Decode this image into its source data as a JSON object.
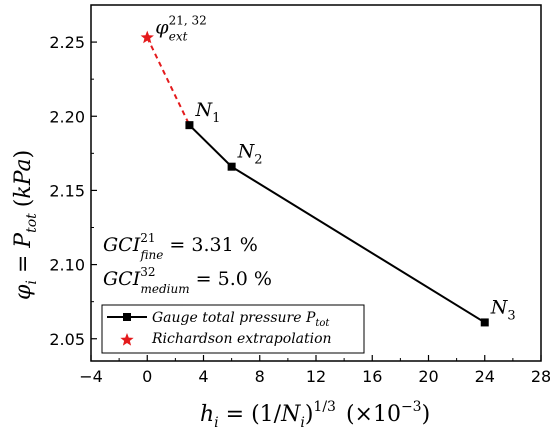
{
  "chart_data": {
    "type": "line",
    "xlim": [
      -4,
      28
    ],
    "ylim": [
      2.035,
      2.275
    ],
    "xticks": [
      -4,
      0,
      4,
      8,
      12,
      16,
      20,
      24,
      28
    ],
    "yticks": [
      2.05,
      2.1,
      2.15,
      2.2,
      2.25
    ],
    "xlabel": {
      "lhs": "h",
      "lhs_sub": "i",
      "rhs": "(1/N",
      "rhs_sub": "i",
      "rhs_close": ")",
      "rhs_sup": "1/3",
      "scale": "(×10",
      "scale_sup": "−3",
      "scale_close": ")"
    },
    "ylabel": {
      "a": "φ",
      "a_sub": "i",
      "b": " = P",
      "b_sub": "tot",
      "c": " (kPa)"
    },
    "series": [
      {
        "name": "Gauge total pressure P",
        "name_sub": "tot",
        "color": "#000000",
        "marker": "square",
        "points": [
          {
            "x": 3.0,
            "y": 2.194,
            "label": "N",
            "label_sub": "1"
          },
          {
            "x": 6.0,
            "y": 2.166,
            "label": "N",
            "label_sub": "2"
          },
          {
            "x": 24.0,
            "y": 2.061,
            "label": "N",
            "label_sub": "3"
          }
        ]
      },
      {
        "name": "Richardson extrapolation",
        "color": "#e41a1c",
        "marker": "star",
        "points": [
          {
            "x": 0.0,
            "y": 2.253,
            "label": "φ",
            "label_sub": "ext",
            "label_sup": "21, 32"
          }
        ]
      }
    ],
    "annotations": [
      {
        "base": "GCI",
        "sub": "fine",
        "sup": "21",
        "value": " = 3.31 %"
      },
      {
        "base": "GCI",
        "sub": "medium",
        "sup": "32",
        "value": " = 5.0 %"
      }
    ],
    "grid": false,
    "legend": "bottom-left"
  }
}
